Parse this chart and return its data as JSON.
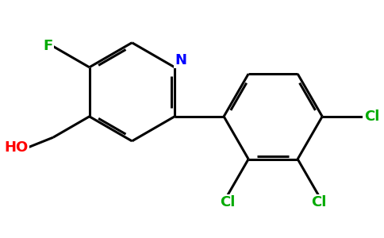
{
  "background_color": "#ffffff",
  "atom_colors": {
    "N": "#0000ff",
    "F": "#00aa00",
    "Cl": "#00aa00",
    "HO": "#ff0000",
    "C": "#000000"
  },
  "bond_lw": 2.2,
  "font_size": 13,
  "fig_width": 4.84,
  "fig_height": 3.0,
  "dpi": 100
}
